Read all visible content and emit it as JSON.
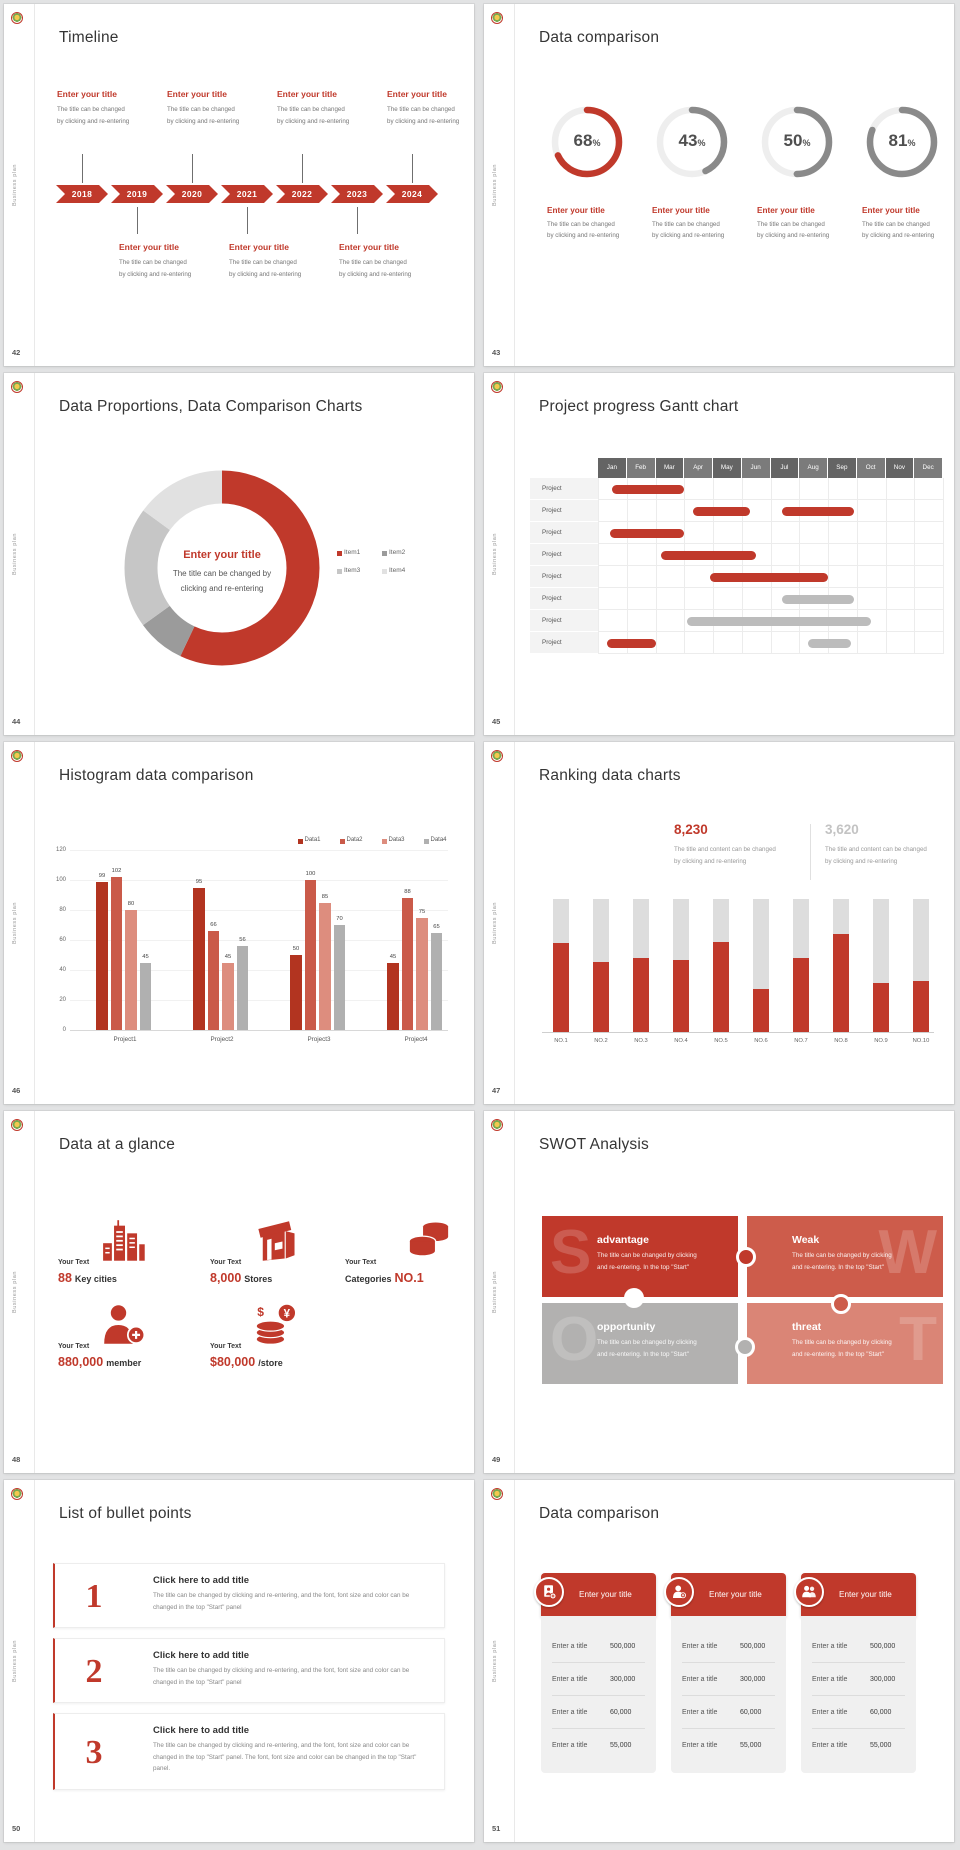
{
  "page_background": "#e2e3e4",
  "common": {
    "brand_vertical_label": "Business plan"
  },
  "palette": {
    "red": "#c0392b",
    "red_dark": "#b23420",
    "red_mid": "#ca5a49",
    "salmon": "#dd8d7e",
    "gray_bar": "#b0b0b0",
    "ring_gray": "#8a8a8a",
    "track": "#eeeeee",
    "text_dark": "#353535",
    "text_gray": "#777777"
  },
  "slides": [
    {
      "number": "42",
      "title": "Timeline",
      "timeline": {
        "years": [
          "2018",
          "2019",
          "2020",
          "2021",
          "2022",
          "2023",
          "2024"
        ],
        "callout_title": "Enter your title",
        "callout_lines": [
          "The title can be changed",
          "by clicking and re-entering"
        ],
        "top_positions": [
          0,
          2,
          4,
          6
        ],
        "bottom_positions": [
          1,
          3,
          5
        ]
      }
    },
    {
      "number": "43",
      "title": "Data comparison",
      "rings": {
        "items": [
          {
            "value": 68,
            "suffix": "%",
            "color": "#c0392b"
          },
          {
            "value": 43,
            "suffix": "%",
            "color": "#8a8a8a"
          },
          {
            "value": 50,
            "suffix": "%",
            "color": "#8a8a8a"
          },
          {
            "value": 81,
            "suffix": "%",
            "color": "#8a8a8a"
          }
        ],
        "caption_title": "Enter your title",
        "caption_lines": [
          "The title can be changed",
          "by clicking and re-entering"
        ]
      }
    },
    {
      "number": "44",
      "title": "Data Proportions, Data Comparison Charts",
      "chart_data": {
        "type": "pie",
        "title": "Enter your title",
        "center_lines": [
          "The title can be changed by",
          "clicking and re-entering"
        ],
        "segments": [
          {
            "label": "Item1",
            "value": 57,
            "color": "#c0392b"
          },
          {
            "label": "Item2",
            "value": 8,
            "color": "#9b9b9b"
          },
          {
            "label": "Item3",
            "value": 20,
            "color": "#c6c6c6"
          },
          {
            "label": "Item4",
            "value": 15,
            "color": "#e1e1e1"
          }
        ],
        "legend_position": "right"
      }
    },
    {
      "number": "45",
      "title": "Project progress Gantt chart",
      "gantt": {
        "months": [
          "Jan",
          "Feb",
          "Mar",
          "Apr",
          "May",
          "Jun",
          "Jul",
          "Aug",
          "Sep",
          "Oct",
          "Nov",
          "Dec"
        ],
        "row_label": "Project",
        "rows": 8,
        "bars": [
          {
            "row": 0,
            "start": 0.5,
            "end": 3.0,
            "color": "red"
          },
          {
            "row": 1,
            "start": 3.3,
            "end": 5.3,
            "color": "red"
          },
          {
            "row": 1,
            "start": 6.4,
            "end": 8.9,
            "color": "red"
          },
          {
            "row": 2,
            "start": 0.4,
            "end": 3.0,
            "color": "red"
          },
          {
            "row": 3,
            "start": 2.2,
            "end": 5.5,
            "color": "red"
          },
          {
            "row": 4,
            "start": 3.9,
            "end": 8.0,
            "color": "red"
          },
          {
            "row": 5,
            "start": 6.4,
            "end": 8.9,
            "color": "gray"
          },
          {
            "row": 6,
            "start": 3.1,
            "end": 9.5,
            "color": "gray"
          },
          {
            "row": 7,
            "start": 0.3,
            "end": 2.0,
            "color": "red"
          },
          {
            "row": 7,
            "start": 7.3,
            "end": 8.8,
            "color": "gray"
          }
        ]
      }
    },
    {
      "number": "46",
      "title": "Histogram data comparison",
      "chart_data": {
        "type": "bar",
        "categories": [
          "Project1",
          "Project2",
          "Project3",
          "Project4"
        ],
        "series": [
          {
            "name": "Data1",
            "color": "#b23420",
            "values": [
              99,
              95,
              50,
              45
            ]
          },
          {
            "name": "Data2",
            "color": "#ca5a49",
            "values": [
              102,
              66,
              100,
              88
            ]
          },
          {
            "name": "Data3",
            "color": "#dd8d7e",
            "values": [
              80,
              45,
              85,
              75
            ]
          },
          {
            "name": "Data4",
            "color": "#b0b0b0",
            "values": [
              45,
              56,
              70,
              65
            ]
          }
        ],
        "ylim": [
          0,
          120
        ],
        "ytick_step": 20,
        "grid": true,
        "legend_position": "top-right"
      }
    },
    {
      "number": "47",
      "title": "Ranking data charts",
      "stats": [
        {
          "value": "8,230",
          "color": "#c0392b",
          "lines": [
            "The title and content can be changed",
            "by clicking and re-entering"
          ]
        },
        {
          "value": "3,620",
          "color": "#c3c3c3",
          "lines": [
            "The title and content can be changed",
            "by clicking and re-entering"
          ]
        }
      ],
      "chart_data": {
        "type": "bar",
        "categories": [
          "NO.1",
          "NO.2",
          "NO.3",
          "NO.4",
          "NO.5",
          "NO.6",
          "NO.7",
          "NO.8",
          "NO.9",
          "NO.10"
        ],
        "values_pct": [
          67,
          53,
          56,
          54,
          68,
          32,
          56,
          74,
          37,
          38
        ],
        "bar_color": "#c0392b",
        "track_color": "#dddddd"
      }
    },
    {
      "number": "48",
      "title": "Data at a glance",
      "glance": {
        "items": [
          {
            "icon": "city-buildings-icon",
            "label": "Your Text",
            "value": "88",
            "unit": "Key cities",
            "value_first": true,
            "row": 0,
            "col": 0
          },
          {
            "icon": "store-icon",
            "label": "Your Text",
            "value": "8,000",
            "unit": "Stores",
            "value_first": true,
            "row": 0,
            "col": 1
          },
          {
            "icon": "category-cylinders-icon",
            "label": "Your Text",
            "value": "NO.1",
            "unit": "Categories",
            "value_first": false,
            "row": 0,
            "col": 2
          },
          {
            "icon": "member-person-icon",
            "label": "Your Text",
            "value": "880,000",
            "unit": "member",
            "value_first": true,
            "row": 1,
            "col": 0
          },
          {
            "icon": "money-coins-icon",
            "label": "Your Text",
            "value": "$80,000",
            "unit": "/store",
            "value_first": true,
            "row": 1,
            "col": 1
          }
        ]
      }
    },
    {
      "number": "49",
      "title": "SWOT Analysis",
      "swot": {
        "quadrants": [
          {
            "letter": "S",
            "title": "advantage",
            "color": "#c0392b",
            "lines": [
              "The title can be changed by clicking",
              "and re-entering. In the top \"Start\""
            ]
          },
          {
            "letter": "W",
            "title": "Weak",
            "color": "#cd5c4b",
            "lines": [
              "The title can be changed by clicking",
              "and re-entering. In the top \"Start\""
            ]
          },
          {
            "letter": "O",
            "title": "opportunity",
            "color": "#b2b1b0",
            "lines": [
              "The title can be changed by clicking",
              "and re-entering. In the top \"Start\""
            ]
          },
          {
            "letter": "T",
            "title": "threat",
            "color": "#da8576",
            "lines": [
              "The title can be changed by clicking",
              "and re-entering. In the top \"Start\""
            ]
          }
        ]
      }
    },
    {
      "number": "50",
      "title": "List of bullet points",
      "bullets": {
        "items": [
          {
            "num": "1",
            "title": "Click here to add title",
            "body": "The title can be changed by clicking and re-entering, and the font, font size and color can be changed in the top \"Start\" panel"
          },
          {
            "num": "2",
            "title": "Click here to add title",
            "body": "The title can be changed by clicking and re-entering, and the font, font size and color can be changed in the top \"Start\" panel"
          },
          {
            "num": "3",
            "title": "Click here to add title",
            "body": "The title can be changed by clicking and re-entering, and the font, font size and color can be changed in the top \"Start\" panel. The font, font size and color can be changed in the top \"Start\" panel."
          }
        ]
      }
    },
    {
      "number": "51",
      "title": "Data comparison",
      "cards": {
        "header_title": "Enter your title",
        "icons": [
          "id-card-plus-icon",
          "person-add-icon",
          "people-group-icon"
        ],
        "rows": [
          {
            "label": "Enter a title",
            "value": "500,000"
          },
          {
            "label": "Enter a title",
            "value": "300,000"
          },
          {
            "label": "Enter a title",
            "value": "60,000"
          },
          {
            "label": "Enter a title",
            "value": "55,000"
          }
        ]
      }
    }
  ]
}
